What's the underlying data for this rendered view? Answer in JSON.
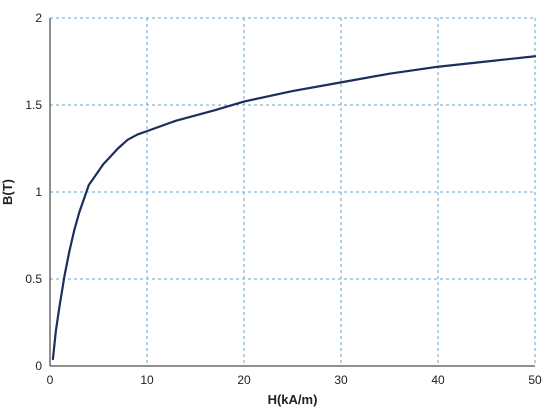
{
  "chart_data": {
    "type": "line",
    "title": "",
    "xlabel": "H(kA/m)",
    "ylabel": "B(T)",
    "xlim": [
      0,
      50
    ],
    "ylim": [
      0,
      2
    ],
    "x_ticks": [
      "0",
      "10",
      "20",
      "30",
      "40",
      "50"
    ],
    "y_ticks": [
      "0",
      "0.5",
      "1",
      "1.5",
      "2"
    ],
    "grid": true,
    "grid_style": "dashed",
    "colors": {
      "line": "#1c2e5c",
      "grid": "#6fa3c8",
      "axis": "#222222"
    },
    "series": [
      {
        "x": [
          0.3,
          0.6,
          1.0,
          1.5,
          2.0,
          2.5,
          3.0,
          3.5,
          4.0,
          4.5,
          5.0,
          5.5,
          6.0,
          7.0,
          8.0,
          9.0,
          10.0,
          11.0,
          12.0,
          13.0,
          15.0,
          17.0,
          20.0,
          25.0,
          30.0,
          35.0,
          40.0,
          45.0,
          50.0
        ],
        "y": [
          0.04,
          0.2,
          0.35,
          0.52,
          0.66,
          0.78,
          0.88,
          0.96,
          1.04,
          1.08,
          1.12,
          1.16,
          1.19,
          1.25,
          1.3,
          1.33,
          1.35,
          1.37,
          1.39,
          1.41,
          1.44,
          1.47,
          1.52,
          1.58,
          1.63,
          1.68,
          1.72,
          1.75,
          1.78
        ]
      }
    ]
  }
}
